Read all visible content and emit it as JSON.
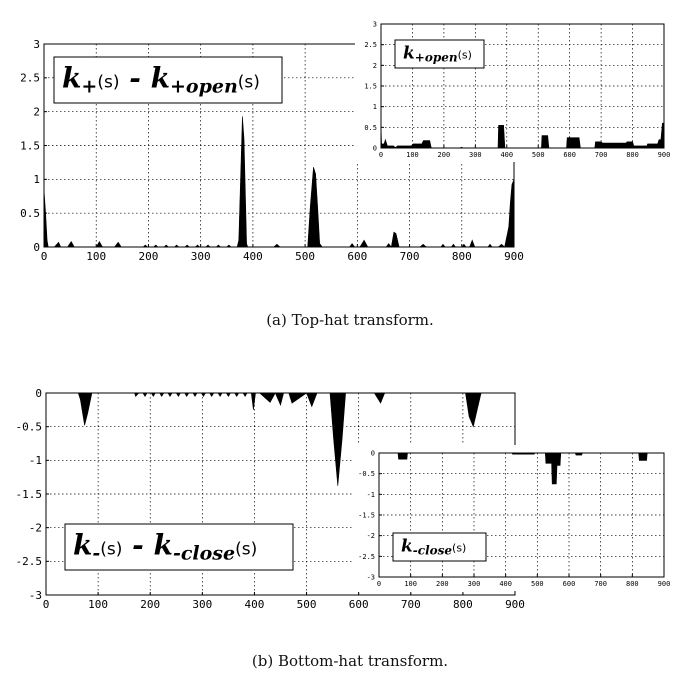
{
  "captions": {
    "a": "(a) Top-hat transform.",
    "b": "(b) Bottom-hat transform."
  },
  "colors": {
    "fill": "#000000",
    "grid": "#000000",
    "background": "#ffffff"
  },
  "chart_data": [
    {
      "id": "a-main",
      "type": "area",
      "legend_box": {
        "var": "k",
        "sub": "+",
        "arg": "(s)",
        "minus": "-",
        "var2": "k",
        "sub2": "+open",
        "arg2": "(s)"
      },
      "xlim": [
        0,
        900
      ],
      "ylim": [
        0,
        3
      ],
      "xticks": [
        0,
        100,
        200,
        300,
        400,
        500,
        600,
        700,
        800,
        900
      ],
      "yticks": [
        0,
        0.5,
        1,
        1.5,
        2,
        2.5,
        3
      ],
      "ytick_labels": [
        "0",
        "0.5",
        "1",
        "1.5",
        "2",
        "2.5",
        "3"
      ],
      "grid": true,
      "x": [
        0,
        3,
        6,
        8,
        20,
        28,
        32,
        45,
        52,
        58,
        100,
        106,
        112,
        135,
        142,
        148,
        190,
        194,
        198,
        210,
        214,
        218,
        230,
        234,
        238,
        250,
        254,
        258,
        270,
        274,
        278,
        290,
        294,
        298,
        310,
        314,
        318,
        330,
        334,
        338,
        350,
        354,
        358,
        370,
        373,
        380,
        383,
        388,
        390,
        440,
        446,
        452,
        505,
        510,
        516,
        520,
        524,
        528,
        533,
        585,
        590,
        595,
        605,
        613,
        620,
        650,
        655,
        660,
        665,
        670,
        674,
        680,
        690,
        720,
        726,
        732,
        760,
        764,
        768,
        780,
        784,
        788,
        800,
        804,
        808,
        815,
        820,
        825,
        850,
        854,
        858,
        870,
        876,
        882,
        890,
        893,
        896,
        900
      ],
      "y": [
        0.85,
        0.5,
        0.1,
        0,
        0,
        0.07,
        0,
        0,
        0.08,
        0,
        0,
        0.08,
        0,
        0,
        0.07,
        0,
        0,
        0.03,
        0,
        0,
        0.03,
        0,
        0,
        0.03,
        0,
        0,
        0.03,
        0,
        0,
        0.03,
        0,
        0,
        0.03,
        0,
        0,
        0.03,
        0,
        0,
        0.03,
        0,
        0,
        0.03,
        0,
        0,
        0.1,
        1.93,
        1.6,
        0.05,
        0,
        0,
        0.04,
        0,
        0,
        0.6,
        1.18,
        1.08,
        0.6,
        0.05,
        0,
        0,
        0.05,
        0,
        0,
        0.1,
        0,
        0,
        0,
        0.05,
        0,
        0.22,
        0.2,
        0,
        0,
        0,
        0.04,
        0,
        0,
        0.04,
        0,
        0,
        0.04,
        0,
        0,
        0.04,
        0,
        0,
        0.1,
        0,
        0,
        0.04,
        0,
        0,
        0.04,
        0,
        0.3,
        0.65,
        0.92,
        1.0
      ]
    },
    {
      "id": "a-inset",
      "type": "area",
      "legend_box": {
        "var": "k",
        "sub": "+open",
        "arg": "(s)"
      },
      "xlim": [
        0,
        900
      ],
      "ylim": [
        0,
        3
      ],
      "xticks": [
        0,
        100,
        200,
        300,
        400,
        500,
        600,
        700,
        800,
        900
      ],
      "yticks": [
        0,
        0.5,
        1,
        1.5,
        2,
        2.5,
        3
      ],
      "ytick_labels": [
        "0",
        "0.5",
        "1",
        "1.5",
        "2",
        "2.5",
        "3"
      ],
      "grid": true,
      "x": [
        0,
        2,
        10,
        14,
        20,
        40,
        44,
        48,
        52,
        96,
        102,
        130,
        135,
        155,
        160,
        250,
        256,
        262,
        372,
        374,
        390,
        394,
        510,
        512,
        530,
        534,
        590,
        592,
        630,
        634,
        680,
        682,
        700,
        704,
        780,
        782,
        800,
        804,
        846,
        848,
        880,
        884,
        890,
        895,
        900
      ],
      "y": [
        0.55,
        0.1,
        0.1,
        0.2,
        0.05,
        0.05,
        0.02,
        0.02,
        0.05,
        0.05,
        0.1,
        0.1,
        0.18,
        0.18,
        0,
        0,
        0.02,
        0,
        0,
        0.55,
        0.55,
        0,
        0,
        0.3,
        0.3,
        0,
        0,
        0.25,
        0.25,
        0,
        0,
        0.15,
        0.15,
        0.12,
        0.12,
        0.15,
        0.15,
        0.05,
        0.05,
        0.1,
        0.1,
        0.2,
        0.2,
        0.6,
        0.6
      ]
    },
    {
      "id": "b-main",
      "type": "area",
      "legend_box": {
        "var": "k",
        "sub": "-",
        "arg": "(s)",
        "minus": "-",
        "var2": "k",
        "sub2": "-close",
        "arg2": "(s)"
      },
      "xlim": [
        0,
        900
      ],
      "ylim": [
        -3,
        0
      ],
      "xticks": [
        0,
        100,
        200,
        300,
        400,
        500,
        600,
        700,
        800,
        900
      ],
      "yticks": [
        0,
        -0.5,
        -1,
        -1.5,
        -2,
        -2.5,
        -3
      ],
      "ytick_labels": [
        "0",
        "-0.5",
        "-1",
        "-1.5",
        "-2",
        "-2.5",
        "-3"
      ],
      "grid": true,
      "x": [
        0,
        62,
        66,
        74,
        80,
        88,
        120,
        170,
        172,
        178,
        186,
        190,
        194,
        202,
        206,
        210,
        218,
        222,
        226,
        234,
        238,
        242,
        250,
        254,
        258,
        266,
        270,
        274,
        282,
        286,
        290,
        298,
        302,
        306,
        314,
        318,
        322,
        330,
        334,
        338,
        346,
        350,
        354,
        362,
        366,
        370,
        378,
        382,
        386,
        394,
        398,
        402,
        410,
        430,
        440,
        450,
        456,
        466,
        472,
        500,
        510,
        520,
        545,
        552,
        560,
        568,
        575,
        630,
        642,
        650,
        805,
        812,
        820,
        826,
        835,
        900
      ],
      "y": [
        0,
        0,
        -0.1,
        -0.48,
        -0.3,
        0,
        0,
        0,
        -0.05,
        0,
        0,
        -0.05,
        0,
        0,
        -0.05,
        0,
        0,
        -0.05,
        0,
        0,
        -0.05,
        0,
        0,
        -0.05,
        0,
        0,
        -0.05,
        0,
        0,
        -0.05,
        0,
        0,
        -0.05,
        0,
        0,
        -0.05,
        0,
        0,
        -0.05,
        0,
        0,
        -0.05,
        0,
        0,
        -0.05,
        0,
        0,
        -0.05,
        0,
        0,
        -0.25,
        0,
        0,
        -0.14,
        0,
        -0.18,
        0,
        0,
        -0.15,
        0,
        -0.2,
        0,
        0,
        -0.7,
        -1.38,
        -0.7,
        0,
        0,
        -0.15,
        0,
        0,
        -0.35,
        -0.5,
        -0.3,
        0,
        0
      ]
    },
    {
      "id": "b-inset",
      "type": "area",
      "legend_box": {
        "var": "k",
        "sub": "-close",
        "arg": "(s)"
      },
      "xlim": [
        0,
        900
      ],
      "ylim": [
        -3,
        0
      ],
      "xticks": [
        0,
        100,
        200,
        300,
        400,
        500,
        600,
        700,
        800,
        900
      ],
      "yticks": [
        0,
        -0.5,
        -1,
        -1.5,
        -2,
        -2.5,
        -3
      ],
      "ytick_labels": [
        "0",
        "-0.5",
        "-1",
        "-1.5",
        "-2",
        "-2.5",
        "-3"
      ],
      "grid": true,
      "x": [
        0,
        60,
        62,
        88,
        90,
        420,
        422,
        490,
        492,
        525,
        527,
        545,
        547,
        560,
        562,
        572,
        574,
        620,
        622,
        640,
        642,
        820,
        822,
        845,
        847,
        900
      ],
      "y": [
        0,
        0,
        -0.15,
        -0.15,
        0,
        0,
        -0.03,
        -0.03,
        0,
        0,
        -0.25,
        -0.25,
        -0.75,
        -0.75,
        -0.3,
        -0.3,
        0,
        0,
        -0.05,
        -0.05,
        0,
        0,
        -0.18,
        -0.18,
        0,
        0
      ]
    }
  ]
}
